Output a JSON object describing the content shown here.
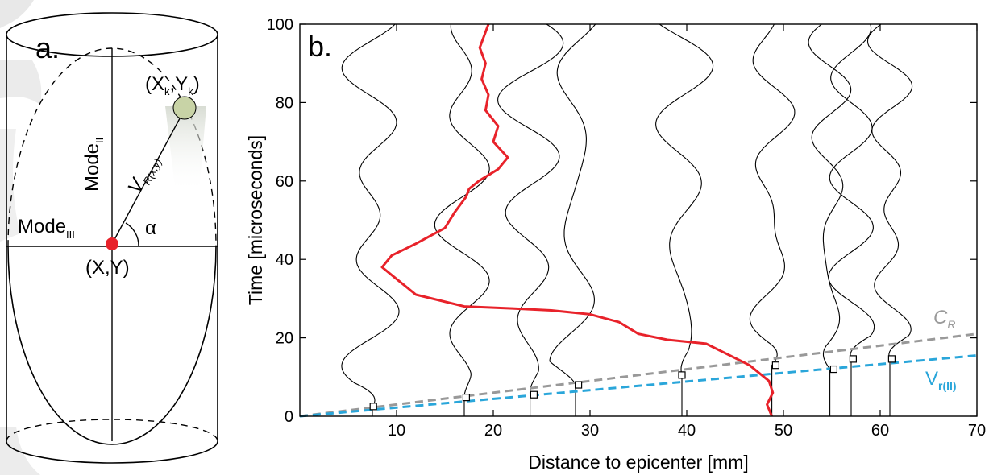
{
  "panel_a": {
    "label": "a.",
    "mode_ii": "Mode",
    "mode_ii_sub": "II",
    "mode_iii": "Mode",
    "mode_iii_sub": "III",
    "v_label": "V",
    "v_sub": "R(x,y)",
    "alpha": "α",
    "origin_label": "(X,Y)",
    "target_label_x": "(X",
    "target_sub_k": "k",
    "target_label_y": ",Y",
    "target_label_close": ")",
    "colors": {
      "origin": "#e8222a",
      "target": "#c8d3a6"
    }
  },
  "chart_data": {
    "type": "line",
    "panel_label": "b.",
    "xlabel": "Distance to epicenter [mm]",
    "ylabel": "Time [microseconds]",
    "xlim": [
      0,
      70
    ],
    "ylim": [
      0,
      100
    ],
    "xticks": [
      10,
      20,
      30,
      40,
      50,
      60,
      70
    ],
    "yticks": [
      0,
      20,
      40,
      60,
      80,
      100
    ],
    "grid": false,
    "station_x": [
      7.5,
      17,
      23.8,
      28.5,
      39.5,
      48.8,
      54.8,
      57,
      61
    ],
    "arrival_markers": [
      {
        "x": 7.6,
        "y": 2.5
      },
      {
        "x": 17.2,
        "y": 4.8
      },
      {
        "x": 24.2,
        "y": 5.5
      },
      {
        "x": 28.8,
        "y": 8
      },
      {
        "x": 39.5,
        "y": 10.5
      },
      {
        "x": 49.2,
        "y": 13
      },
      {
        "x": 55.2,
        "y": 12
      },
      {
        "x": 57.2,
        "y": 14.6
      },
      {
        "x": 61.2,
        "y": 14.6
      }
    ],
    "series": [
      {
        "name": "C",
        "sub": "R",
        "color": "#999999",
        "x": [
          0,
          70
        ],
        "y": [
          0,
          21
        ]
      },
      {
        "name": "V",
        "sub": "r(II)",
        "color": "#2aa6da",
        "x": [
          0,
          70
        ],
        "y": [
          0,
          15.5
        ]
      }
    ],
    "red_trace": {
      "color": "#e8222a",
      "x": [
        48.8,
        48.3,
        48.9,
        48.5,
        46.5,
        42,
        38,
        35,
        33,
        30,
        26,
        22,
        17,
        12,
        10,
        8.5,
        9.5,
        12,
        15,
        16,
        17.2,
        17.5,
        18.5,
        20.5,
        21.5,
        20,
        20.5,
        19.2,
        19.5,
        18.8,
        19.2,
        18.6,
        19.5
      ],
      "y": [
        0,
        3,
        6,
        9,
        13,
        18.5,
        19.5,
        21,
        24,
        26,
        27,
        27.5,
        28,
        31,
        35,
        38,
        41,
        44,
        48,
        52,
        56,
        58,
        60,
        63,
        66,
        70,
        74,
        78,
        82,
        86,
        90,
        94,
        100
      ]
    }
  }
}
